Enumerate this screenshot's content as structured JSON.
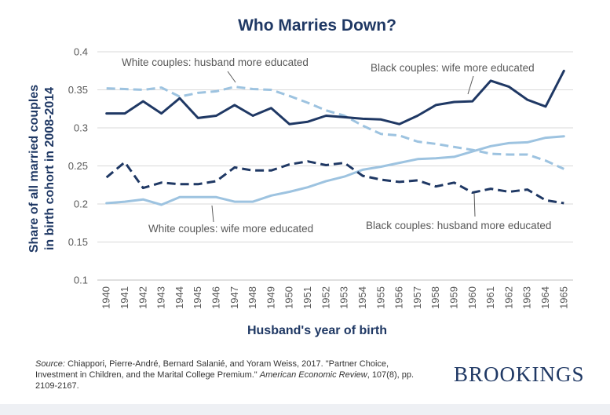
{
  "chart_data": {
    "type": "line",
    "title": "Who Marries Down?",
    "ylabel_line1": "Share of all married couples",
    "ylabel_line2": "in birth cohort in 2008-2014",
    "xlabel": "Husband's year of birth",
    "ylim": [
      0.1,
      0.4
    ],
    "yticks": [
      "0.1",
      "0.15",
      "0.2",
      "0.25",
      "0.3",
      "0.35",
      "0.4"
    ],
    "grid": "horizontal",
    "x": [
      1940,
      1941,
      1942,
      1943,
      1944,
      1945,
      1946,
      1947,
      1948,
      1949,
      1950,
      1951,
      1952,
      1953,
      1954,
      1955,
      1956,
      1957,
      1958,
      1959,
      1960,
      1961,
      1962,
      1963,
      1964,
      1965
    ],
    "series": [
      {
        "name": "Black couples: wife more educated",
        "color": "#1f3864",
        "dash": "solid",
        "values": [
          0.319,
          0.319,
          0.335,
          0.319,
          0.339,
          0.313,
          0.316,
          0.33,
          0.316,
          0.326,
          0.305,
          0.308,
          0.316,
          0.314,
          0.312,
          0.311,
          0.305,
          0.316,
          0.33,
          0.334,
          0.335,
          0.362,
          0.354,
          0.337,
          0.328,
          0.375
        ]
      },
      {
        "name": "White couples: husband more educated",
        "color": "#9dc3e0",
        "dash": "dashed",
        "values": [
          0.352,
          0.351,
          0.35,
          0.353,
          0.341,
          0.346,
          0.348,
          0.354,
          0.351,
          0.35,
          0.342,
          0.333,
          0.323,
          0.316,
          0.303,
          0.292,
          0.29,
          0.282,
          0.279,
          0.275,
          0.271,
          0.266,
          0.265,
          0.265,
          0.257,
          0.246
        ]
      },
      {
        "name": "Black couples: husband more educated",
        "color": "#1f3864",
        "dash": "dashed",
        "values": [
          0.235,
          0.255,
          0.221,
          0.228,
          0.226,
          0.226,
          0.23,
          0.248,
          0.244,
          0.244,
          0.252,
          0.256,
          0.251,
          0.254,
          0.237,
          0.232,
          0.229,
          0.231,
          0.223,
          0.228,
          0.215,
          0.22,
          0.216,
          0.219,
          0.205,
          0.201
        ]
      },
      {
        "name": "White couples: wife more educated",
        "color": "#9dc3e0",
        "dash": "solid",
        "values": [
          0.201,
          0.203,
          0.206,
          0.199,
          0.209,
          0.209,
          0.209,
          0.203,
          0.203,
          0.211,
          0.216,
          0.222,
          0.23,
          0.236,
          0.245,
          0.249,
          0.254,
          0.259,
          0.26,
          0.262,
          0.269,
          0.276,
          0.28,
          0.281,
          0.287,
          0.289
        ]
      }
    ],
    "annotations": [
      {
        "text": "White couples: husband more educated",
        "series": 1
      },
      {
        "text": "Black couples: wife more educated",
        "series": 0
      },
      {
        "text": "White couples: wife more educated",
        "series": 3
      },
      {
        "text": "Black couples: husband more educated",
        "series": 2
      }
    ]
  },
  "source": {
    "label": "Source:",
    "text1": " Chiappori, Pierre-André, Bernard Salanié, and Yoram Weiss, 2017. \"Partner Choice, Investment in Children, and the Marital College Premium.\" ",
    "journal": "American Economic Review",
    "text2": ", 107(8), pp. 2109-2167."
  },
  "brand": "BROOKINGS"
}
